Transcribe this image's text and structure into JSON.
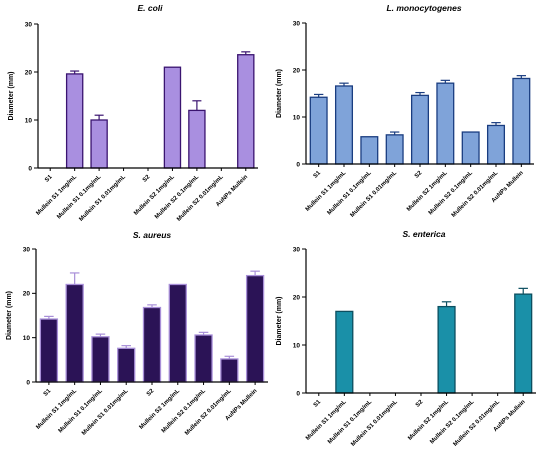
{
  "chart_data": [
    {
      "type": "bar",
      "title": "E. coli",
      "ylabel": "Diameter (mm)",
      "ylim": [
        0,
        30
      ],
      "yticks": [
        0,
        10,
        20,
        30
      ],
      "categories": [
        "S1",
        "Mullein S1 1mg/mL",
        "Mullein S1 0.1mg/mL",
        "Mullein S1 0.01mg/mL",
        "S2",
        "Mullein S2 1mg/mL",
        "Mullein S2 0.1mg/mL",
        "Mullein S2 0.01mg/mL",
        "AuNPs Mullein"
      ],
      "values": [
        0,
        19.6,
        10,
        0,
        0,
        21,
        12,
        0,
        23.6
      ],
      "errors": [
        0,
        0.6,
        1.0,
        0,
        0,
        0,
        2.0,
        0,
        0.6
      ],
      "bar_color": "#a98fe0",
      "edge_color": "#3a1470",
      "error_color": "#3a1470"
    },
    {
      "type": "bar",
      "title": "L. monocytogenes",
      "ylabel": "Diameter (mm)",
      "ylim": [
        0,
        30
      ],
      "yticks": [
        0,
        10,
        20,
        30
      ],
      "categories": [
        "S1",
        "Mullein S1 1mg/mL",
        "Mullein S1 0.1mg/mL",
        "Mullein S1 0.01mg/mL",
        "S2",
        "Mullein S2 1mg/mL",
        "Mullein S2 0.1mg/mL",
        "Mullein S2 0.01mg/mL",
        "AuNPs Mullein"
      ],
      "values": [
        14.2,
        16.6,
        5.8,
        6.2,
        14.6,
        17.2,
        6.8,
        8.2,
        18.2
      ],
      "errors": [
        0.6,
        0.6,
        0,
        0.6,
        0.6,
        0.6,
        0,
        0.6,
        0.6
      ],
      "bar_color": "#7fa3d9",
      "edge_color": "#1a3d80",
      "error_color": "#1a3d80"
    },
    {
      "type": "bar",
      "title": "S. aureus",
      "ylabel": "Diameter (mm)",
      "ylim": [
        0,
        30
      ],
      "yticks": [
        0,
        10,
        20,
        30
      ],
      "categories": [
        "S1",
        "Mullein S1 1mg/mL",
        "Mullein S1 0.1mg/mL",
        "Mullein S1 0.01mg/mL",
        "S2",
        "Mullein S2 1mg/mL",
        "Mullein S2 0.1mg/mL",
        "Mullein S2 0.01mg/mL",
        "AuNPs Mullein"
      ],
      "values": [
        14.2,
        22,
        10.2,
        7.6,
        16.8,
        22,
        10.6,
        5.2,
        24
      ],
      "errors": [
        0.6,
        2.6,
        0.6,
        0.6,
        0.6,
        0,
        0.6,
        0.6,
        1.0
      ],
      "bar_color": "#2b1356",
      "edge_color": "#a88fd8",
      "error_color": "#a88fd8"
    },
    {
      "type": "bar",
      "title": "S. enterica",
      "ylabel": "Diameter (mm)",
      "ylim": [
        0,
        30
      ],
      "yticks": [
        0,
        10,
        20,
        30
      ],
      "categories": [
        "S1",
        "Mullein S1 1mg/mL",
        "Mullein S1 0.1mg/mL",
        "Mullein S1 0.01mg/mL",
        "S2",
        "Mullein S2 1mg/mL",
        "Mullein S2 0.1mg/mL",
        "Mullein S2 0.01mg/mL",
        "AuNPs Mullein"
      ],
      "values": [
        0,
        17,
        0,
        0,
        0,
        18,
        0,
        0,
        20.6
      ],
      "errors": [
        0,
        0,
        0,
        0,
        0,
        1.0,
        0,
        0,
        1.2
      ],
      "bar_color": "#1a90a8",
      "edge_color": "#0c4f60",
      "error_color": "#0c4f60"
    }
  ]
}
